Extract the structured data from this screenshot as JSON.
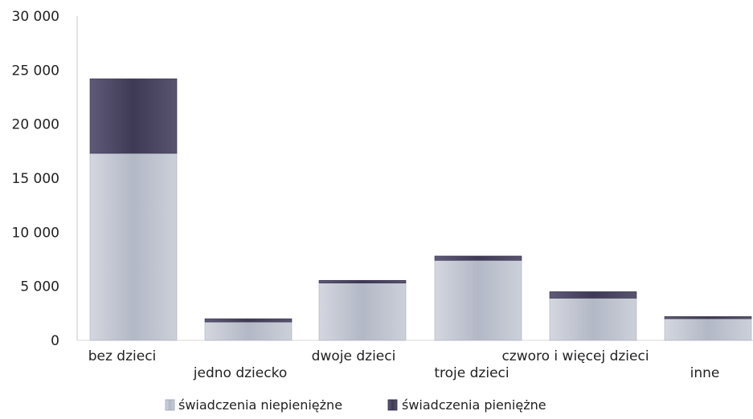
{
  "chart_data": {
    "type": "bar",
    "stacked": true,
    "categories": [
      "bez dzieci",
      "jedno dziecko",
      "dwoje dzieci",
      "troje dzieci",
      "czworo i więcej dzieci",
      "inne"
    ],
    "series": [
      {
        "name": "świadczenia niepieniężne",
        "values": [
          17300,
          1700,
          5300,
          7400,
          3900,
          2000
        ],
        "color": "#b9bdc9"
      },
      {
        "name": "świadczenia pieniężne",
        "values": [
          6900,
          300,
          250,
          400,
          600,
          200
        ],
        "color": "#4a4660"
      }
    ],
    "yticks": [
      "0",
      "5 000",
      "10 000",
      "15 000",
      "20 000",
      "25 000",
      "30 000"
    ],
    "ylim": [
      0,
      30000
    ],
    "grid": false,
    "legend_position": "bottom"
  }
}
